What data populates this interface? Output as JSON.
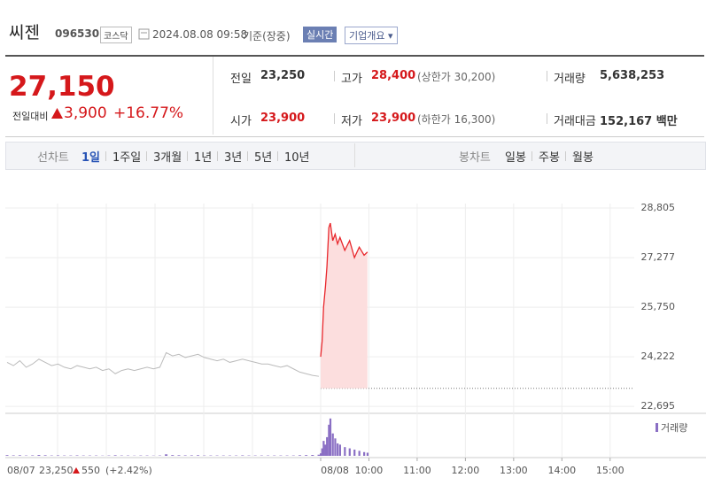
{
  "header": {
    "name": "씨젠",
    "code": "096530",
    "market": "코스닥",
    "datetime": "2024.08.08 09:58",
    "basis": "기준(장중)",
    "realtime": "실시간",
    "company_info": "기업개요"
  },
  "quote": {
    "price": "27,150",
    "change_label": "전일대비",
    "change": "3,900",
    "change_pct": "+16.77%"
  },
  "stats": [
    {
      "label": "전일",
      "value": "23,250"
    },
    {
      "label": "고가",
      "value": "28,400",
      "extra": "(상한가 30,200)"
    },
    {
      "label": "거래량",
      "value": "5,638,253"
    },
    {
      "label": "시가",
      "value": "23,900"
    },
    {
      "label": "저가",
      "value": "23,900",
      "extra": "(하한가 16,300)"
    },
    {
      "label": "거래대금",
      "value": "152,167 백만"
    }
  ],
  "tabs": {
    "line_label": "선차트",
    "line_periods": [
      "1일",
      "1주일",
      "3개월",
      "1년",
      "3년",
      "5년",
      "10년"
    ],
    "candle_label": "봉차트",
    "candle_periods": [
      "일봉",
      "주봉",
      "월봉"
    ]
  },
  "footer": {
    "close": "23,250",
    "change": "550",
    "change_pct": "(+2.42%)"
  },
  "chart_data": {
    "type": "line",
    "ylim": [
      22480,
      29760
    ],
    "yticks": [
      {
        "value": 22695,
        "label": "22,695"
      },
      {
        "value": 24222,
        "label": "24,222"
      },
      {
        "value": 25750,
        "label": "25,750"
      },
      {
        "value": 27277,
        "label": "27,277"
      },
      {
        "value": 28805,
        "label": "28,805"
      }
    ],
    "xlim": [
      9,
      15.5
    ],
    "xticks": [
      {
        "value": 9,
        "label": "08/08"
      },
      {
        "value": 10,
        "label": "10:00"
      },
      {
        "value": 11,
        "label": "11:00"
      },
      {
        "value": 12,
        "label": "12:00"
      },
      {
        "value": 13,
        "label": "13:00"
      },
      {
        "value": 14,
        "label": "14:00"
      },
      {
        "value": 15,
        "label": "15:00"
      }
    ],
    "base": 23250,
    "prev_day": {
      "label": "08/07",
      "color": "#bbbbbb",
      "values": [
        24050,
        23950,
        24100,
        23900,
        24000,
        24150,
        24050,
        23950,
        24000,
        23900,
        23850,
        23950,
        23900,
        23850,
        23900,
        23800,
        23850,
        23700,
        23800,
        23850,
        23800,
        23850,
        23900,
        23850,
        23900,
        24350,
        24250,
        24300,
        24200,
        24250,
        24300,
        24200,
        24150,
        24100,
        24150,
        24050,
        24100,
        24150,
        24100,
        24050,
        24000,
        24000,
        23950,
        23900,
        23950,
        23850,
        23750,
        23700,
        23650,
        23620
      ]
    },
    "series": [
      {
        "color": "#e8262b",
        "x": [
          9,
          9.03,
          9.06,
          9.1,
          9.13,
          9.17,
          9.2,
          9.25,
          9.3,
          9.35,
          9.4,
          9.5,
          9.6,
          9.7,
          9.8,
          9.9,
          9.97
        ],
        "values": [
          24222,
          24700,
          25750,
          26400,
          27000,
          28200,
          28341,
          27800,
          28000,
          27700,
          27900,
          27500,
          27800,
          27277,
          27600,
          27350,
          27450
        ]
      }
    ],
    "fill": "#fcdede",
    "volume": {
      "name": "거래량",
      "color": "#8a6fc4",
      "prev_values": [
        6000,
        4000,
        5000,
        3000,
        4000,
        7000,
        5000,
        3000,
        4000,
        3000,
        3000,
        4000,
        3000,
        3000,
        3000,
        2000,
        3000,
        5000,
        3000,
        3000,
        2000,
        3000,
        3000,
        2000,
        3000,
        12000,
        6000,
        5000,
        4000,
        4000,
        5000,
        3000,
        3000,
        3000,
        3000,
        3000,
        3000,
        4000,
        3000,
        3000,
        3000,
        3000,
        3000,
        3000,
        3000,
        3000,
        5000,
        6000,
        7000,
        9000
      ],
      "values": [
        20000,
        60000,
        120000,
        90000,
        150000,
        250000,
        300000,
        180000,
        140000,
        100000,
        90000,
        70000,
        60000,
        50000,
        40000,
        30000,
        25000
      ],
      "vlim": [
        0,
        320000
      ]
    }
  }
}
